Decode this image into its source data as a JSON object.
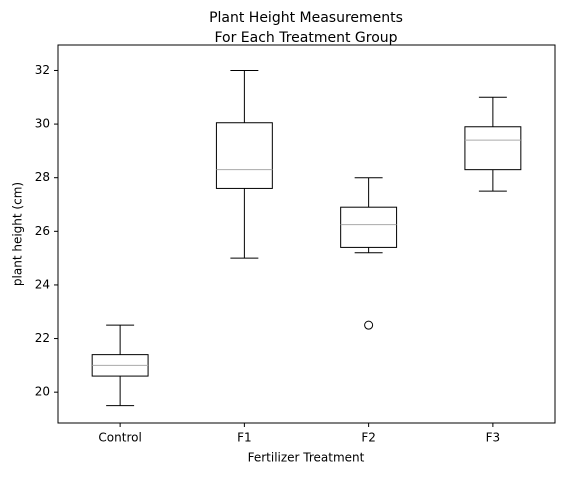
{
  "chart_data": {
    "type": "box",
    "title": [
      "Plant Height Measurements",
      "For Each Treatment Group"
    ],
    "x_label": "Fertilizer Treatment",
    "y_label": "plant height (cm)",
    "categories": [
      "Control",
      "F1",
      "F2",
      "F3"
    ],
    "whislo": [
      19.5,
      25.0,
      25.2,
      27.5
    ],
    "q1": [
      20.6,
      27.6,
      25.4,
      28.3
    ],
    "median": [
      21.0,
      28.3,
      26.25,
      29.4
    ],
    "q3": [
      21.4,
      30.05,
      26.9,
      29.9
    ],
    "whishi": [
      22.5,
      32.0,
      28.0,
      31.0
    ],
    "fliers": [
      [],
      [],
      [
        22.5
      ],
      []
    ],
    "color": "#000000",
    "median_color": "#aaaaaa",
    "ylim": [
      18.85,
      32.95
    ],
    "yticks": [
      20,
      22,
      24,
      26,
      28,
      30,
      32
    ],
    "grid": false
  }
}
